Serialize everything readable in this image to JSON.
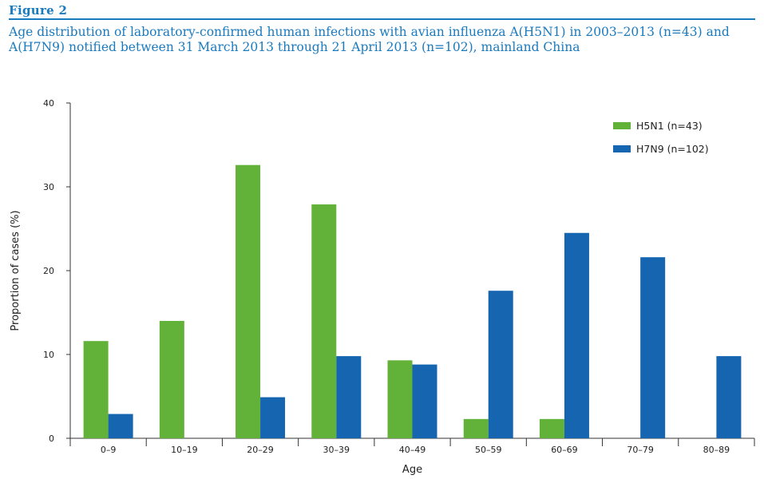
{
  "figure_label": "Figure 2",
  "caption": "Age distribution of laboratory-confirmed human infections with avian influenza A(H5N1) in 2003–2013 (n=43) and A(H7N9) notified between 31 March 2013 through 21 April 2013 (n=102), mainland China",
  "colors": {
    "accent": "#1a7abf",
    "h5n1": "#62b23a",
    "h7n9": "#1565b0"
  },
  "chart_data": {
    "type": "bar",
    "xlabel": "Age",
    "ylabel": "Proportion of cases (%)",
    "ylim": [
      0,
      40
    ],
    "yticks": [
      0,
      10,
      20,
      30,
      40
    ],
    "categories": [
      "0–9",
      "10–19",
      "20–29",
      "30–39",
      "40–49",
      "50–59",
      "60–69",
      "70–79",
      "80–89"
    ],
    "series": [
      {
        "name": "H5N1 (n=43)",
        "values": [
          11.6,
          14.0,
          32.6,
          27.9,
          9.3,
          2.3,
          2.3,
          0,
          0
        ]
      },
      {
        "name": "H7N9 (n=102)",
        "values": [
          2.9,
          0,
          4.9,
          9.8,
          8.8,
          17.6,
          24.5,
          21.6,
          9.8
        ]
      }
    ],
    "legend_position": "top-right",
    "grid": false
  }
}
